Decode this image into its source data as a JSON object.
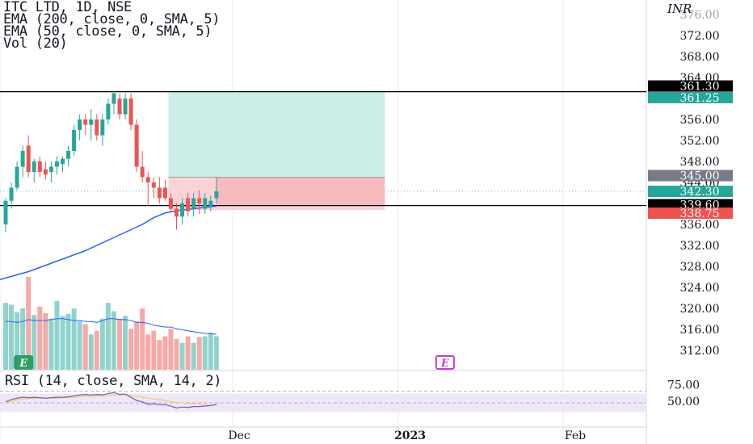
{
  "legend": {
    "symbol": "ITC LTD, 1D, NSE",
    "ema200": "EMA (200, close, 0, SMA, 5)",
    "ema50": "EMA (50, close, 0, SMA, 5)",
    "vol": "Vol (20)"
  },
  "rsi_legend": "RSI (14, close, SMA, 14, 2)",
  "currency": "INR",
  "colors": {
    "up": "#26a69a",
    "down": "#ef5350",
    "ema": "#2962ff",
    "hline": "#000000",
    "target_zone": "#cdeee8",
    "stop_zone": "#f9d3d6",
    "rsi_line": "#7e57c2",
    "rsi_ma": "#f2c94c",
    "rsi_band": "#ede7f6",
    "event_marker": "#2e9e62",
    "event_marker_2": "#c040d0"
  },
  "chart_data": {
    "type": "candlestick",
    "ylim": [
      308,
      376
    ],
    "y_ticks": [
      312,
      316,
      320,
      324,
      328,
      332,
      336,
      340,
      344,
      348,
      352,
      356,
      360,
      364,
      368,
      372
    ],
    "y_tick_labels": [
      "312.00",
      "316.00",
      "320.00",
      "324.00",
      "328.00",
      "332.00",
      "336.00",
      "340.00",
      "344.00",
      "348.00",
      "352.00",
      "356.00",
      "360.00",
      "364.00",
      "368.00",
      "372.00"
    ],
    "partial_top_tick": "376.00",
    "x_labels": [
      {
        "label": "Dec",
        "bar": 41
      },
      {
        "label": "2023",
        "bar": 71
      },
      {
        "label": "Feb",
        "bar": 100
      }
    ],
    "candles": [
      {
        "o": 336,
        "h": 341,
        "l": 334.5,
        "c": 340.5
      },
      {
        "o": 340.5,
        "h": 344,
        "l": 339,
        "c": 343
      },
      {
        "o": 343,
        "h": 348,
        "l": 342.5,
        "c": 347
      },
      {
        "o": 347,
        "h": 351,
        "l": 345,
        "c": 350
      },
      {
        "o": 351,
        "h": 353,
        "l": 345,
        "c": 346
      },
      {
        "o": 346,
        "h": 348.5,
        "l": 344,
        "c": 348
      },
      {
        "o": 348,
        "h": 349,
        "l": 345,
        "c": 346
      },
      {
        "o": 346.5,
        "h": 348,
        "l": 344.5,
        "c": 345.5
      },
      {
        "o": 346,
        "h": 348,
        "l": 344,
        "c": 347
      },
      {
        "o": 347,
        "h": 349,
        "l": 345.5,
        "c": 348
      },
      {
        "o": 347.5,
        "h": 349,
        "l": 346,
        "c": 348.5
      },
      {
        "o": 348.5,
        "h": 351,
        "l": 347,
        "c": 350
      },
      {
        "o": 350,
        "h": 355,
        "l": 349,
        "c": 354
      },
      {
        "o": 354,
        "h": 357,
        "l": 352,
        "c": 356
      },
      {
        "o": 356,
        "h": 357,
        "l": 353,
        "c": 355
      },
      {
        "o": 355,
        "h": 358,
        "l": 352,
        "c": 356
      },
      {
        "o": 356,
        "h": 357,
        "l": 352,
        "c": 353
      },
      {
        "o": 353,
        "h": 357,
        "l": 351,
        "c": 356
      },
      {
        "o": 356,
        "h": 360,
        "l": 355,
        "c": 359
      },
      {
        "o": 359,
        "h": 361.5,
        "l": 357,
        "c": 361
      },
      {
        "o": 360,
        "h": 361,
        "l": 356,
        "c": 357
      },
      {
        "o": 357,
        "h": 361,
        "l": 356,
        "c": 360
      },
      {
        "o": 360,
        "h": 361,
        "l": 354,
        "c": 355
      },
      {
        "o": 355,
        "h": 356,
        "l": 346,
        "c": 347
      },
      {
        "o": 347,
        "h": 350,
        "l": 344,
        "c": 345
      },
      {
        "o": 345,
        "h": 346,
        "l": 339.5,
        "c": 344
      },
      {
        "o": 344,
        "h": 345,
        "l": 341,
        "c": 343
      },
      {
        "o": 343,
        "h": 345,
        "l": 340,
        "c": 341
      },
      {
        "o": 343,
        "h": 344.5,
        "l": 340.5,
        "c": 341
      },
      {
        "o": 341,
        "h": 342,
        "l": 338.5,
        "c": 339
      },
      {
        "o": 339,
        "h": 340,
        "l": 335,
        "c": 337.5
      },
      {
        "o": 337.5,
        "h": 341,
        "l": 336,
        "c": 340
      },
      {
        "o": 341,
        "h": 342,
        "l": 337.5,
        "c": 338.5
      },
      {
        "o": 339,
        "h": 342,
        "l": 337.5,
        "c": 341
      },
      {
        "o": 341,
        "h": 342.5,
        "l": 338,
        "c": 340
      },
      {
        "o": 339,
        "h": 342,
        "l": 338,
        "c": 341
      },
      {
        "o": 339.5,
        "h": 341.5,
        "l": 338.5,
        "c": 340.5
      },
      {
        "o": 341,
        "h": 345,
        "l": 340,
        "c": 342.3
      }
    ],
    "volume": [
      0.72,
      0.7,
      0.62,
      0.66,
      1.0,
      0.59,
      0.68,
      0.61,
      0.55,
      0.74,
      0.58,
      0.6,
      0.66,
      0.52,
      0.49,
      0.38,
      0.42,
      0.55,
      0.72,
      0.63,
      0.55,
      0.58,
      0.44,
      0.52,
      0.66,
      0.38,
      0.42,
      0.32,
      0.36,
      0.44,
      0.33,
      0.29,
      0.36,
      0.29,
      0.35,
      0.36,
      0.4,
      0.36
    ],
    "volume_ma": [
      0.52,
      0.52,
      0.51,
      0.52,
      0.54,
      0.53,
      0.53,
      0.53,
      0.54,
      0.55,
      0.55,
      0.54,
      0.53,
      0.53,
      0.52,
      0.52,
      0.51,
      0.53,
      0.55,
      0.55,
      0.54,
      0.54,
      0.53,
      0.51,
      0.51,
      0.5,
      0.48,
      0.47,
      0.46,
      0.46,
      0.44,
      0.43,
      0.42,
      0.41,
      0.4,
      0.39,
      0.39,
      0.38
    ],
    "ema50": [
      [
        -1,
        325.5
      ],
      [
        4,
        327
      ],
      [
        9,
        329
      ],
      [
        14,
        331
      ],
      [
        19,
        333.5
      ],
      [
        24,
        336
      ],
      [
        26,
        337.3
      ],
      [
        28,
        338.2
      ],
      [
        30,
        338.6
      ],
      [
        33,
        339
      ],
      [
        37,
        339.5
      ]
    ],
    "hlines": [
      361.3,
      339.6
    ],
    "target_zone": {
      "from_bar": 29,
      "to_bar": 67,
      "low": 345,
      "high": 361.25
    },
    "stop_zone": {
      "from_bar": 29,
      "to_bar": 67,
      "low": 338.75,
      "high": 345
    },
    "entry_line": {
      "from_bar": 37,
      "to_bar": 67,
      "price": 345
    },
    "price_tags": [
      {
        "price": 361.3,
        "label": "361.30",
        "bg": "#000000",
        "fg": "#ffffff",
        "dy": -7
      },
      {
        "price": 361.25,
        "label": "361.25",
        "bg": "#26a69a",
        "fg": "#ffffff",
        "dy": 7
      },
      {
        "price": 345.0,
        "label": "345.00",
        "bg": "#787b86",
        "fg": "#ffffff",
        "dy": -2
      },
      {
        "price": 342.3,
        "label": "342.30",
        "bg": "#26a69a",
        "fg": "#ffffff",
        "dy": 0
      },
      {
        "price": 339.6,
        "label": "339.60",
        "bg": "#000000",
        "fg": "#ffffff",
        "dy": -1
      },
      {
        "price": 338.75,
        "label": "338.75",
        "bg": "#ef5350",
        "fg": "#ffffff",
        "dy": 4
      }
    ],
    "rsi": {
      "ylim": [
        10,
        90
      ],
      "ticks": [
        75,
        50
      ],
      "tick_labels": [
        "75.00",
        "50.00"
      ],
      "band": [
        30,
        70
      ],
      "values": [
        52,
        57,
        60,
        62,
        61,
        62,
        61,
        60,
        61,
        62,
        62,
        63,
        65,
        67,
        68,
        67,
        68,
        67,
        70,
        72,
        68,
        69,
        62,
        55,
        52,
        47,
        48,
        46,
        46,
        43,
        39,
        41,
        40,
        42,
        42,
        43,
        44,
        47
      ],
      "ma": [
        50,
        53,
        56,
        58,
        59,
        60,
        60,
        60,
        60,
        60,
        61,
        61,
        62,
        63,
        64,
        64,
        65,
        65,
        66,
        67,
        67,
        67,
        66,
        64,
        62,
        60,
        58,
        57,
        55,
        53,
        51,
        50,
        49,
        48,
        47,
        46,
        45,
        44
      ]
    },
    "event_markers": [
      {
        "bar": 3,
        "label": "E",
        "color": "#2e9e62",
        "filled": true
      },
      {
        "bar": 77,
        "label": "E",
        "color": "#c040d0",
        "filled": false
      }
    ]
  }
}
